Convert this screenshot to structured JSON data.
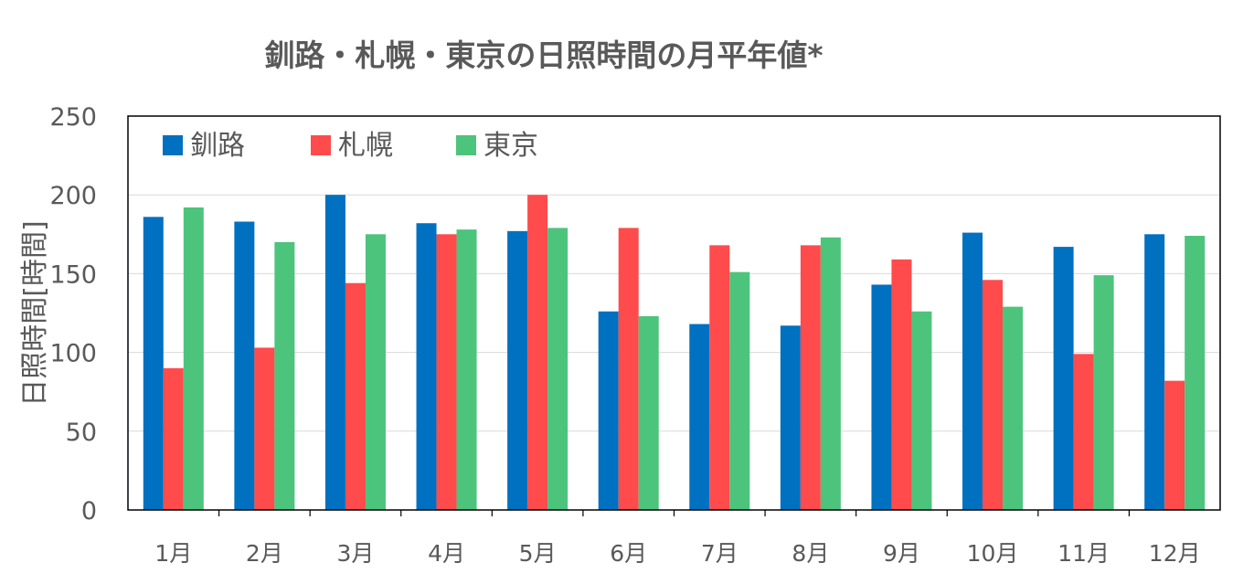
{
  "chart_data": {
    "type": "bar",
    "title": "釧路・札幌・東京の日照時間の月平年値*",
    "xlabel": "",
    "ylabel": "日照時間[時間]",
    "ylim": [
      0,
      250
    ],
    "yticks": [
      0,
      50,
      100,
      150,
      200,
      250
    ],
    "grid": true,
    "legend_position": "top-left",
    "categories": [
      "1月",
      "2月",
      "3月",
      "4月",
      "5月",
      "6月",
      "7月",
      "8月",
      "9月",
      "10月",
      "11月",
      "12月"
    ],
    "series": [
      {
        "name": "釧路",
        "color": "#0070C0",
        "values": [
          186,
          183,
          200,
          182,
          177,
          126,
          118,
          117,
          143,
          176,
          167,
          175
        ]
      },
      {
        "name": "札幌",
        "color": "#FF4B4B",
        "values": [
          90,
          103,
          144,
          175,
          200,
          179,
          168,
          168,
          159,
          146,
          99,
          82
        ]
      },
      {
        "name": "東京",
        "color": "#4CC47C",
        "values": [
          192,
          170,
          175,
          178,
          179,
          123,
          151,
          173,
          126,
          129,
          149,
          174
        ]
      }
    ]
  }
}
